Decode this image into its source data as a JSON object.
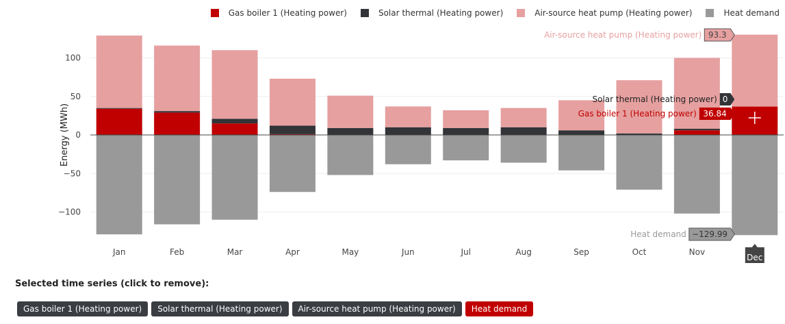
{
  "chart_data": {
    "type": "bar",
    "stacked": true,
    "categories": [
      "Jan",
      "Feb",
      "Mar",
      "Apr",
      "May",
      "Jun",
      "Jul",
      "Aug",
      "Sep",
      "Oct",
      "Nov",
      "Dec"
    ],
    "ylabel": "Energy (MWh)",
    "ylim": [
      -135,
      135
    ],
    "yticks": [
      100,
      50,
      0,
      -50,
      -100
    ],
    "ytick_labels": [
      "100",
      "50",
      "0",
      "−50",
      "−100"
    ],
    "series": [
      {
        "name": "Gas boiler 1 (Heating power)",
        "color": "#c00000",
        "values": [
          34,
          29,
          15,
          1,
          0,
          0,
          0,
          0,
          0,
          0,
          6,
          36.84
        ]
      },
      {
        "name": "Solar thermal (Heating power)",
        "color": "#323438",
        "values": [
          1,
          2,
          6,
          11,
          9,
          10,
          9,
          10,
          6,
          2,
          2,
          0
        ]
      },
      {
        "name": "Air-source heat pump (Heating power)",
        "color": "#e6a0a0",
        "values": [
          94,
          85,
          89,
          61,
          42,
          27,
          23,
          25,
          39,
          69,
          92,
          93.3
        ]
      },
      {
        "name": "Heat demand",
        "color": "#999999",
        "values": [
          -129,
          -116,
          -110,
          -74,
          -52,
          -38,
          -33,
          -36,
          -46,
          -71,
          -102,
          -129.99
        ]
      }
    ],
    "legend_position": "top-right",
    "hover": {
      "category": "Dec",
      "labels": [
        {
          "text": "Air-source heat pump (Heating power)",
          "value": "93.3",
          "color": "#e6a0a0",
          "text_color": "#e6a0a0",
          "value_text_color": "#444444"
        },
        {
          "text": "Solar thermal (Heating power)",
          "value": "0",
          "color": "#323438",
          "text_color": "#222222",
          "value_text_color": "#ffffff"
        },
        {
          "text": "Gas boiler 1 (Heating power)",
          "value": "36.84",
          "color": "#c00000",
          "text_color": "#c00000",
          "value_text_color": "#ffffff"
        },
        {
          "text": "Heat demand",
          "value": "−129.99",
          "color": "#999999",
          "text_color": "#999999",
          "value_text_color": "#333333"
        }
      ]
    }
  },
  "selection": {
    "title": "Selected time series (click to remove):",
    "chips": [
      {
        "label": "Gas boiler 1 (Heating power)",
        "color": "#3a3d42"
      },
      {
        "label": "Solar thermal (Heating power)",
        "color": "#3a3d42"
      },
      {
        "label": "Air-source heat pump (Heating power)",
        "color": "#3a3d42"
      },
      {
        "label": "Heat demand",
        "color": "#c00000"
      }
    ]
  }
}
